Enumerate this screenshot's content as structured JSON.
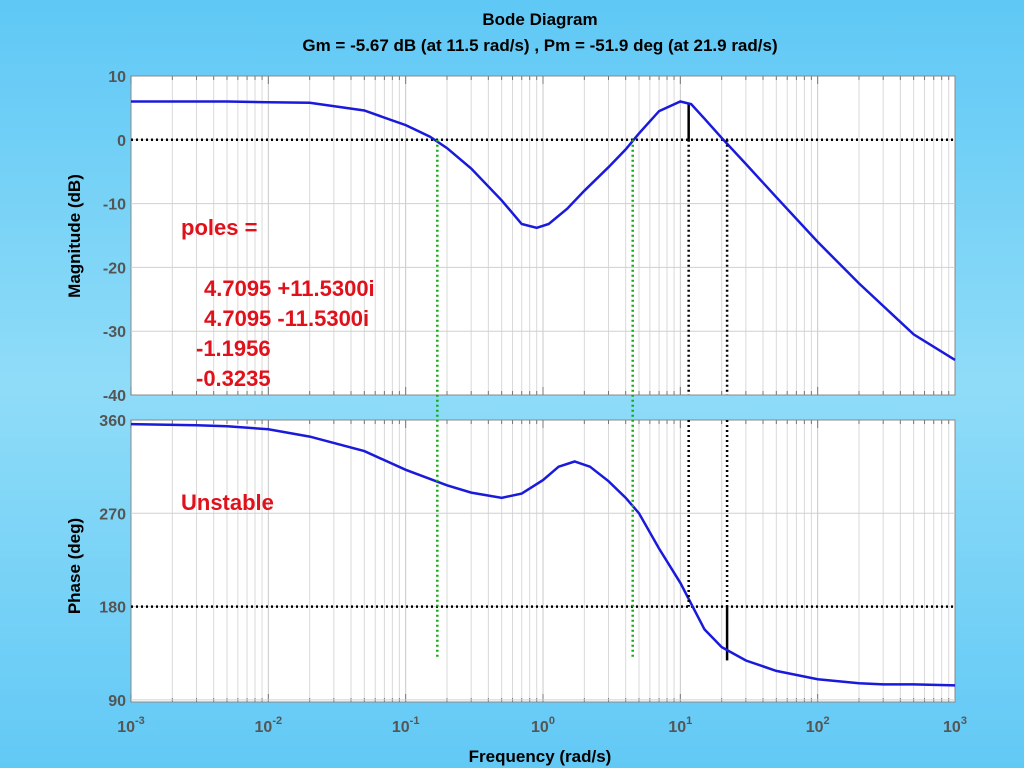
{
  "chart_data": {
    "type": "line",
    "title": "Bode Diagram",
    "subtitle": "Gm = -5.67 dB (at 11.5 rad/s) ,  Pm = -51.9 deg (at 21.9 rad/s)",
    "xlabel": "Frequency  (rad/s)",
    "x_scale": "log",
    "xlim": [
      0.001,
      1000
    ],
    "x_ticks": [
      {
        "value": 0.001,
        "base": "10",
        "exp": "-3"
      },
      {
        "value": 0.01,
        "base": "10",
        "exp": "-2"
      },
      {
        "value": 0.1,
        "base": "10",
        "exp": "-1"
      },
      {
        "value": 1,
        "base": "10",
        "exp": "0"
      },
      {
        "value": 10,
        "base": "10",
        "exp": "1"
      },
      {
        "value": 100,
        "base": "10",
        "exp": "2"
      },
      {
        "value": 1000,
        "base": "10",
        "exp": "3"
      }
    ],
    "grid": true,
    "magnitude": {
      "ylabel": "Magnitude (dB)",
      "ylim": [
        -40,
        10
      ],
      "y_ticks": [
        "10",
        "0",
        "-10",
        "-20",
        "-30",
        "-40"
      ],
      "y_tick_values": [
        10,
        0,
        -10,
        -20,
        -30,
        -40
      ],
      "color": "#1a1adb",
      "points": [
        [
          0.001,
          6.0
        ],
        [
          0.005,
          6.0
        ],
        [
          0.01,
          5.9
        ],
        [
          0.02,
          5.8
        ],
        [
          0.05,
          4.6
        ],
        [
          0.1,
          2.3
        ],
        [
          0.15,
          0.5
        ],
        [
          0.2,
          -1.3
        ],
        [
          0.3,
          -4.5
        ],
        [
          0.5,
          -9.5
        ],
        [
          0.7,
          -13.2
        ],
        [
          0.9,
          -13.8
        ],
        [
          1.1,
          -13.2
        ],
        [
          1.5,
          -10.8
        ],
        [
          2,
          -8.0
        ],
        [
          3,
          -4.3
        ],
        [
          4,
          -1.5
        ],
        [
          5,
          1.0
        ],
        [
          7,
          4.5
        ],
        [
          10,
          6.0
        ],
        [
          12,
          5.6
        ],
        [
          15,
          3.3
        ],
        [
          20,
          0.3
        ],
        [
          30,
          -3.8
        ],
        [
          50,
          -9.0
        ],
        [
          100,
          -16.0
        ],
        [
          200,
          -22.5
        ],
        [
          500,
          -30.5
        ],
        [
          1000,
          -34.5
        ]
      ],
      "reference_line": 0,
      "gain_margin_marker": {
        "x": 11.5,
        "y_from": 0,
        "y_to": 5.67
      }
    },
    "phase": {
      "ylabel": "Phase (deg)",
      "ylim": [
        88,
        360
      ],
      "y_ticks": [
        "360",
        "270",
        "180",
        "90"
      ],
      "y_tick_values": [
        360,
        270,
        180,
        90
      ],
      "color": "#1a1adb",
      "points": [
        [
          0.001,
          356
        ],
        [
          0.003,
          355
        ],
        [
          0.005,
          354
        ],
        [
          0.01,
          351
        ],
        [
          0.02,
          344
        ],
        [
          0.05,
          330
        ],
        [
          0.1,
          312
        ],
        [
          0.2,
          297
        ],
        [
          0.3,
          290
        ],
        [
          0.5,
          285
        ],
        [
          0.7,
          289
        ],
        [
          1,
          302
        ],
        [
          1.3,
          315
        ],
        [
          1.7,
          320
        ],
        [
          2.2,
          315
        ],
        [
          3,
          301
        ],
        [
          4,
          285
        ],
        [
          5,
          270
        ],
        [
          7,
          236
        ],
        [
          10,
          203
        ],
        [
          15,
          158
        ],
        [
          20,
          141
        ],
        [
          30,
          128
        ],
        [
          50,
          118
        ],
        [
          100,
          110
        ],
        [
          200,
          106
        ],
        [
          300,
          105
        ],
        [
          500,
          105
        ],
        [
          1000,
          104
        ]
      ],
      "reference_line": 180,
      "phase_margin_marker": {
        "x": 21.9,
        "y_from": 180,
        "y_to": 128.1
      }
    },
    "crossover_lines": [
      {
        "x": 0.17,
        "color": "#11aa11"
      },
      {
        "x": 4.5,
        "color": "#11aa11"
      },
      {
        "x": 11.5,
        "color": "#000000"
      },
      {
        "x": 21.9,
        "color": "#000000"
      }
    ],
    "annotations": {
      "poles_label": "poles =",
      "poles": [
        "4.7095 +11.5300i",
        "4.7095 -11.5300i",
        "-1.1956",
        "-0.3235"
      ],
      "stability": "Unstable",
      "color": "#e0111b"
    }
  }
}
